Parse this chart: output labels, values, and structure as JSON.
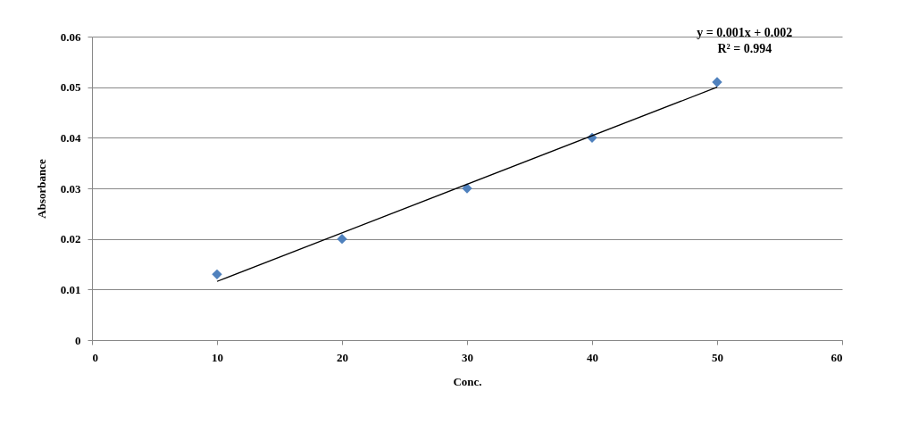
{
  "chart_data": {
    "type": "scatter",
    "xlabel": "Conc.",
    "ylabel": "Absorbance",
    "x": [
      10,
      20,
      30,
      40,
      50
    ],
    "series": [
      {
        "color": "#4f81bd",
        "marker": "diamond",
        "values": [
          0.013,
          0.02,
          0.03,
          0.04,
          0.051
        ]
      },
      {
        "type": "line",
        "color": "#000000",
        "marker": "none",
        "x": [
          10,
          50
        ],
        "values": [
          0.0116,
          0.05
        ]
      }
    ],
    "xlim": [
      0,
      60
    ],
    "xticks": [
      0,
      10,
      20,
      30,
      40,
      50,
      60
    ],
    "ylim": [
      0,
      0.06
    ],
    "yticks": [
      {
        "value": 0,
        "label": "0"
      },
      0.01,
      0.02,
      0.03,
      0.04,
      0.05,
      0.06
    ],
    "grid": "y",
    "annotations": [
      "y = 0.001x + 0.002",
      "R² = 0.994"
    ]
  }
}
